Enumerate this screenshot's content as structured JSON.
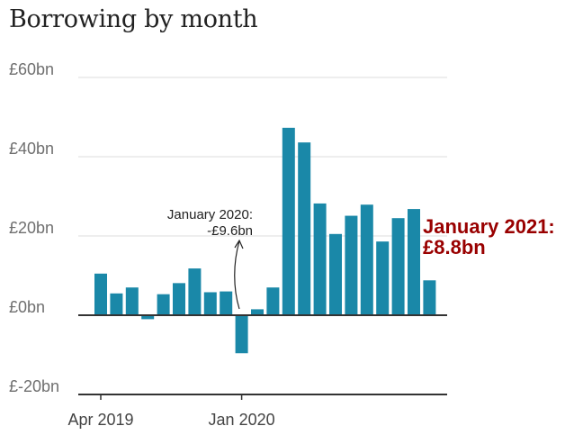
{
  "title": "Borrowing by month",
  "colors": {
    "bar": "#1a88a8",
    "axis": "#333333",
    "grid": "#dddddd",
    "callout": "#990000"
  },
  "chart_data": {
    "type": "bar",
    "title": "Borrowing by month",
    "x_tick_labels": [
      "Apr 2019",
      "Jan 2020"
    ],
    "y_tick_labels": [
      "£60bn",
      "£40bn",
      "£20bn",
      "£0bn",
      "£-20bn"
    ],
    "y_ticks": [
      60,
      40,
      20,
      0,
      -20
    ],
    "ylim": [
      -20,
      60
    ],
    "grid": true,
    "categories": [
      "Apr 2019",
      "May 2019",
      "Jun 2019",
      "Jul 2019",
      "Aug 2019",
      "Sep 2019",
      "Oct 2019",
      "Nov 2019",
      "Dec 2019",
      "Jan 2020",
      "Feb 2020",
      "Mar 2020",
      "Apr 2020",
      "May 2020",
      "Jun 2020",
      "Jul 2020",
      "Aug 2020",
      "Sep 2020",
      "Oct 2020",
      "Nov 2020",
      "Dec 2020",
      "Jan 2021"
    ],
    "values": [
      10.5,
      5.5,
      7.0,
      -1.0,
      5.3,
      8.1,
      11.8,
      5.8,
      6.0,
      -9.6,
      1.5,
      7.0,
      47.3,
      43.6,
      28.2,
      20.5,
      25.1,
      27.9,
      18.6,
      24.5,
      26.8,
      8.8
    ],
    "annotations": [
      {
        "line1": "January 2020:",
        "line2": "-£9.6bn"
      }
    ],
    "callout": {
      "line1": "January 2021:",
      "line2": "£8.8bn"
    }
  }
}
